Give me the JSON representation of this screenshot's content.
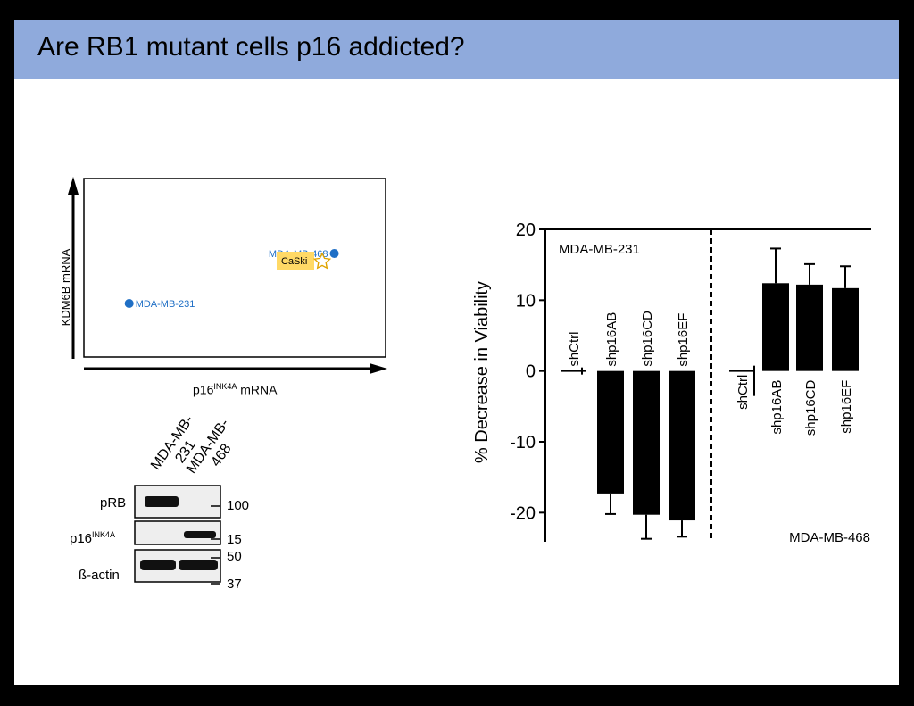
{
  "slide": {
    "title": "Are RB1 mutant cells p16 addicted?"
  },
  "scatter": {
    "xlabel_main": "p16",
    "xlabel_sup": "INK4A",
    "xlabel_tail": " mRNA",
    "ylabel": "KDM6B mRNA",
    "points": [
      {
        "label": "MDA-MB-231",
        "x": 0.15,
        "y": 0.7,
        "color": "#1f6fc5"
      },
      {
        "label": "MDA-MB-468",
        "x": 0.83,
        "y": 0.42,
        "color": "#1f6fc5"
      }
    ],
    "caski": {
      "label": "CaSki",
      "marker": "star-icon",
      "box_color": "#ffd966",
      "star_color": "#f0b000"
    }
  },
  "blot": {
    "lanes": [
      "MDA-MB-231",
      "MDA-MB-468"
    ],
    "lane_text": {
      "l1_line1": "MDA-MB-",
      "l1_line2": "231",
      "l2_line1": "MDA-MB-",
      "l2_line2": "468"
    },
    "rows": [
      {
        "label": "pRB",
        "label_sup": ""
      },
      {
        "label": "p16",
        "label_sup": "INK4A"
      },
      {
        "label": "ß-actin",
        "label_sup": ""
      }
    ],
    "markers": [
      "100",
      "15",
      "50",
      "37"
    ]
  },
  "chart_data": {
    "type": "bar",
    "ylabel": "% Decrease in Viability",
    "ylim": [
      -25,
      20
    ],
    "yticks": [
      20,
      10,
      0,
      -10,
      -20
    ],
    "panels": [
      {
        "name": "MDA-MB-231",
        "categories": [
          "shCtrl",
          "shp16AB",
          "shp16CD",
          "shp16EF"
        ],
        "values": [
          0,
          -17.3,
          -20.3,
          -21.1
        ],
        "errors": [
          0,
          2.9,
          3.4,
          2.3
        ]
      },
      {
        "name": "MDA-MB-468",
        "categories": [
          "shCtrl",
          "shp16AB",
          "shp16CD",
          "shp16EF"
        ],
        "values": [
          0,
          12.4,
          12.2,
          11.7
        ],
        "errors": [
          0,
          4.9,
          2.9,
          3.1
        ]
      }
    ]
  }
}
